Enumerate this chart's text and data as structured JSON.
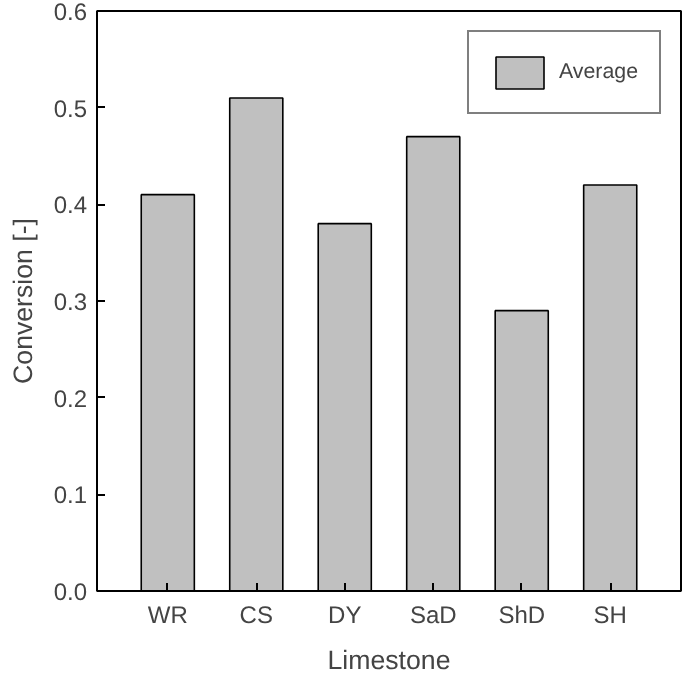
{
  "chart_data": {
    "type": "bar",
    "xlabel": "Limestone",
    "ylabel": "Conversion [-]",
    "categories": [
      "WR",
      "CS",
      "DY",
      "SaD",
      "ShD",
      "SH"
    ],
    "series": [
      {
        "name": "Average",
        "color": "#c0c0c0",
        "values": [
          0.41,
          0.51,
          0.38,
          0.47,
          0.29,
          0.42
        ]
      }
    ],
    "ylim": [
      0,
      0.6
    ],
    "yticks": [
      {
        "value": 0,
        "label": "0.0"
      },
      0.1,
      0.2,
      0.3,
      0.4,
      0.5,
      0.6
    ],
    "grid": false,
    "legend": "top right"
  }
}
